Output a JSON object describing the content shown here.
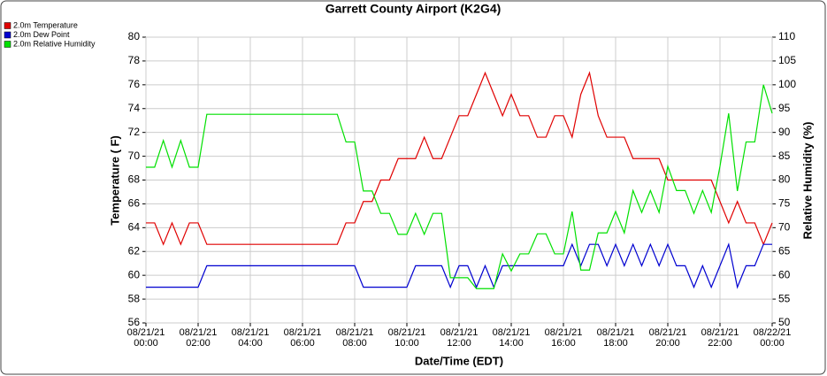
{
  "chart_data": {
    "type": "line",
    "title": "Garrett County Airport (K2G4)",
    "xlabel": "Date/Time (EDT)",
    "ylabel": "Temperature ( F)",
    "y2label": "Relative Humidity (%)",
    "xlim": [
      "08/21/21 00:00",
      "08/22/21 00:00"
    ],
    "xticks": [
      "08/21/21\n00:00",
      "08/21/21\n02:00",
      "08/21/21\n04:00",
      "08/21/21\n06:00",
      "08/21/21\n08:00",
      "08/21/21\n10:00",
      "08/21/21\n12:00",
      "08/21/21\n14:00",
      "08/21/21\n16:00",
      "08/21/21\n18:00",
      "08/21/21\n20:00",
      "08/21/21\n22:00",
      "08/22/21\n00:00"
    ],
    "ylim": [
      56,
      80
    ],
    "yticks": [
      56,
      58,
      60,
      62,
      64,
      66,
      68,
      70,
      72,
      74,
      76,
      78,
      80
    ],
    "y2lim": [
      50,
      110
    ],
    "y2ticks": [
      50,
      55,
      60,
      65,
      70,
      75,
      80,
      85,
      90,
      95,
      100,
      105,
      110
    ],
    "grid": true,
    "x": [
      "08/21/21 00:00",
      "08/21/21 00:20",
      "08/21/21 00:40",
      "08/21/21 01:00",
      "08/21/21 01:20",
      "08/21/21 01:40",
      "08/21/21 02:00",
      "08/21/21 02:20",
      "08/21/21 02:40",
      "08/21/21 03:00",
      "08/21/21 03:20",
      "08/21/21 03:40",
      "08/21/21 04:00",
      "08/21/21 04:20",
      "08/21/21 04:40",
      "08/21/21 05:00",
      "08/21/21 05:20",
      "08/21/21 05:40",
      "08/21/21 06:00",
      "08/21/21 06:20",
      "08/21/21 06:40",
      "08/21/21 07:00",
      "08/21/21 07:20",
      "08/21/21 07:40",
      "08/21/21 08:00",
      "08/21/21 08:20",
      "08/21/21 08:40",
      "08/21/21 09:00",
      "08/21/21 09:20",
      "08/21/21 09:40",
      "08/21/21 10:00",
      "08/21/21 10:20",
      "08/21/21 10:40",
      "08/21/21 11:00",
      "08/21/21 11:20",
      "08/21/21 11:40",
      "08/21/21 12:00",
      "08/21/21 12:20",
      "08/21/21 12:40",
      "08/21/21 13:00",
      "08/21/21 13:20",
      "08/21/21 13:40",
      "08/21/21 14:00",
      "08/21/21 14:20",
      "08/21/21 14:40",
      "08/21/21 15:00",
      "08/21/21 15:20",
      "08/21/21 15:40",
      "08/21/21 16:00",
      "08/21/21 16:20",
      "08/21/21 16:40",
      "08/21/21 17:00",
      "08/21/21 17:20",
      "08/21/21 17:40",
      "08/21/21 18:00",
      "08/21/21 18:20",
      "08/21/21 18:40",
      "08/21/21 19:00",
      "08/21/21 19:20",
      "08/21/21 19:40",
      "08/21/21 20:00",
      "08/21/21 20:20",
      "08/21/21 20:40",
      "08/21/21 21:00",
      "08/21/21 21:20",
      "08/21/21 21:40",
      "08/21/21 22:00",
      "08/21/21 22:20",
      "08/21/21 22:40",
      "08/21/21 23:00",
      "08/21/21 23:20",
      "08/21/21 23:40",
      "08/22/21 00:00"
    ],
    "series": [
      {
        "name": "2.0m Temperature",
        "color": "#e00000",
        "axis": "y",
        "values": [
          64.4,
          64.4,
          62.6,
          64.4,
          62.6,
          64.4,
          64.4,
          62.6,
          62.6,
          62.6,
          62.6,
          62.6,
          62.6,
          62.6,
          62.6,
          62.6,
          62.6,
          62.6,
          62.6,
          62.6,
          62.6,
          62.6,
          62.6,
          64.4,
          64.4,
          66.2,
          66.2,
          68.0,
          68.0,
          69.8,
          69.8,
          69.8,
          71.6,
          69.8,
          69.8,
          71.6,
          73.4,
          73.4,
          75.2,
          77.0,
          75.2,
          73.4,
          75.2,
          73.4,
          73.4,
          71.6,
          71.6,
          73.4,
          73.4,
          71.6,
          75.2,
          77.0,
          73.4,
          71.6,
          71.6,
          71.6,
          69.8,
          69.8,
          69.8,
          69.8,
          68.0,
          68.0,
          68.0,
          68.0,
          68.0,
          68.0,
          66.2,
          64.4,
          66.2,
          64.4,
          64.4,
          62.6,
          64.4
        ]
      },
      {
        "name": "2.0m Dew Point",
        "color": "#0000d0",
        "axis": "y",
        "values": [
          59.0,
          59.0,
          59.0,
          59.0,
          59.0,
          59.0,
          59.0,
          60.8,
          60.8,
          60.8,
          60.8,
          60.8,
          60.8,
          60.8,
          60.8,
          60.8,
          60.8,
          60.8,
          60.8,
          60.8,
          60.8,
          60.8,
          60.8,
          60.8,
          60.8,
          59.0,
          59.0,
          59.0,
          59.0,
          59.0,
          59.0,
          60.8,
          60.8,
          60.8,
          60.8,
          59.0,
          60.8,
          60.8,
          59.0,
          60.8,
          59.0,
          60.8,
          60.8,
          60.8,
          60.8,
          60.8,
          60.8,
          60.8,
          60.8,
          62.6,
          60.8,
          62.6,
          62.6,
          60.8,
          62.6,
          60.8,
          62.6,
          60.8,
          62.6,
          60.8,
          62.6,
          60.8,
          60.8,
          59.0,
          60.8,
          59.0,
          60.8,
          62.6,
          59.0,
          60.8,
          60.8,
          62.6,
          62.6
        ]
      },
      {
        "name": "2.0m Relative Humidity",
        "color": "#00e000",
        "axis": "y2",
        "values": [
          82.7,
          82.7,
          88.3,
          82.7,
          88.3,
          82.7,
          82.7,
          93.8,
          93.8,
          93.8,
          93.8,
          93.8,
          93.8,
          93.8,
          93.8,
          93.8,
          93.8,
          93.8,
          93.8,
          93.8,
          93.8,
          93.8,
          93.8,
          88.0,
          88.0,
          77.7,
          77.7,
          73.0,
          73.0,
          68.6,
          68.6,
          73.0,
          68.6,
          73.0,
          73.0,
          59.5,
          59.5,
          59.5,
          57.2,
          57.2,
          57.2,
          64.5,
          60.9,
          64.5,
          64.5,
          68.7,
          68.7,
          64.5,
          64.5,
          73.4,
          61.1,
          61.1,
          68.9,
          68.9,
          73.4,
          68.9,
          77.8,
          73.2,
          77.8,
          73.2,
          82.9,
          77.8,
          77.8,
          73.0,
          77.8,
          73.2,
          82.9,
          94.0,
          77.7,
          88.0,
          88.0,
          100.0,
          94.0
        ]
      }
    ]
  }
}
